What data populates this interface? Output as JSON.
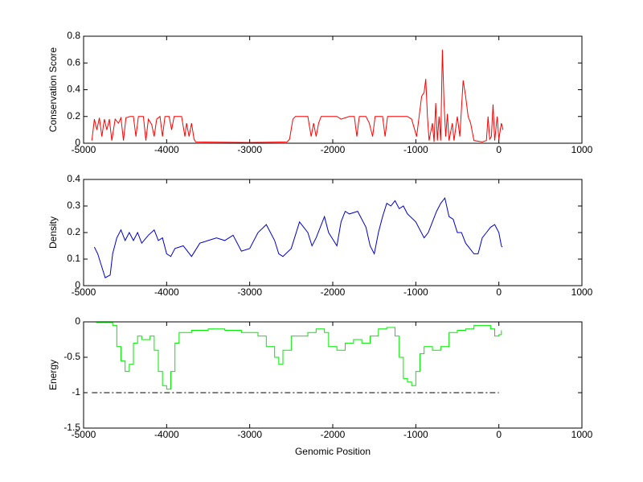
{
  "chart_data": [
    {
      "type": "line",
      "ylabel": "Conservation Score",
      "x": [
        -4900,
        -4870,
        -4840,
        -4810,
        -4780,
        -4750,
        -4720,
        -4690,
        -4660,
        -4620,
        -4580,
        -4550,
        -4520,
        -4490,
        -4440,
        -4400,
        -4370,
        -4340,
        -4280,
        -4250,
        -4220,
        -4180,
        -4150,
        -4120,
        -4080,
        -4050,
        -4020,
        -3970,
        -3940,
        -3910,
        -3820,
        -3780,
        -3760,
        -3730,
        -3700,
        -3670,
        -3650,
        -3000,
        -2550,
        -2520,
        -2480,
        -2450,
        -2300,
        -2260,
        -2230,
        -2200,
        -2170,
        -2140,
        -1950,
        -1900,
        -1850,
        -1800,
        -1740,
        -1710,
        -1680,
        -1600,
        -1560,
        -1520,
        -1490,
        -1400,
        -1370,
        -1340,
        -1100,
        -1050,
        -990,
        -960,
        -930,
        -900,
        -880,
        -860,
        -840,
        -800,
        -780,
        -760,
        -740,
        -720,
        -700,
        -680,
        -660,
        -640,
        -620,
        -600,
        -560,
        -540,
        -500,
        -470,
        -430,
        -400,
        -370,
        -340,
        -300,
        -200,
        -150,
        -130,
        -110,
        -90,
        -70,
        -50,
        -20,
        0,
        30,
        50
      ],
      "series": [
        {
          "color": "#ff0000",
          "values": [
            0.02,
            0.18,
            0.1,
            0.19,
            0.05,
            0.18,
            0.1,
            0.18,
            0.02,
            0.18,
            0.15,
            0.19,
            0.02,
            0.19,
            0.2,
            0.2,
            0.05,
            0.2,
            0.2,
            0.02,
            0.18,
            0.14,
            0.05,
            0.18,
            0.2,
            0.05,
            0.2,
            0.2,
            0.1,
            0.2,
            0.2,
            0.05,
            0.15,
            0.05,
            0.15,
            0.03,
            0.01,
            0.005,
            0.01,
            0.03,
            0.18,
            0.2,
            0.2,
            0.05,
            0.15,
            0.05,
            0.15,
            0.2,
            0.2,
            0.18,
            0.19,
            0.2,
            0.2,
            0.05,
            0.2,
            0.2,
            0.15,
            0.05,
            0.2,
            0.2,
            0.05,
            0.2,
            0.2,
            0.18,
            0.05,
            0.2,
            0.35,
            0.38,
            0.48,
            0.2,
            0.02,
            0.15,
            0.01,
            0.3,
            0.02,
            0.2,
            0.02,
            0.7,
            0.3,
            0.05,
            0.22,
            0.02,
            0.15,
            0.02,
            0.2,
            0.05,
            0.47,
            0.35,
            0.2,
            0.15,
            0.02,
            0.01,
            0.02,
            0.2,
            0.03,
            0.05,
            0.29,
            0.02,
            0.2,
            0.03,
            0.15,
            0.1
          ]
        }
      ],
      "xlim": [
        -5000,
        1000
      ],
      "xticks": [
        -5000,
        -4000,
        -3000,
        -2000,
        -1000,
        0,
        1000
      ],
      "ylim": [
        0,
        0.8
      ],
      "yticks": [
        0,
        0.2,
        0.4,
        0.6,
        0.8
      ]
    },
    {
      "type": "line",
      "ylabel": "Density",
      "x": [
        -4870,
        -4830,
        -4780,
        -4740,
        -4680,
        -4650,
        -4600,
        -4550,
        -4500,
        -4450,
        -4400,
        -4350,
        -4300,
        -4220,
        -4150,
        -4100,
        -4050,
        -4000,
        -3950,
        -3900,
        -3800,
        -3700,
        -3600,
        -3500,
        -3400,
        -3300,
        -3200,
        -3100,
        -3000,
        -2900,
        -2800,
        -2700,
        -2650,
        -2600,
        -2500,
        -2400,
        -2300,
        -2250,
        -2200,
        -2100,
        -2050,
        -1950,
        -1900,
        -1850,
        -1800,
        -1700,
        -1600,
        -1550,
        -1500,
        -1450,
        -1400,
        -1350,
        -1300,
        -1250,
        -1200,
        -1150,
        -1100,
        -1000,
        -900,
        -850,
        -800,
        -750,
        -700,
        -650,
        -600,
        -550,
        -500,
        -450,
        -400,
        -350,
        -300,
        -250,
        -200,
        -150,
        -100,
        -50,
        0,
        30,
        40
      ],
      "series": [
        {
          "color": "#0000cc",
          "values": [
            0.145,
            0.12,
            0.07,
            0.03,
            0.04,
            0.12,
            0.18,
            0.21,
            0.17,
            0.2,
            0.17,
            0.2,
            0.16,
            0.19,
            0.21,
            0.17,
            0.18,
            0.12,
            0.11,
            0.14,
            0.15,
            0.11,
            0.16,
            0.17,
            0.18,
            0.17,
            0.19,
            0.13,
            0.14,
            0.2,
            0.23,
            0.17,
            0.12,
            0.11,
            0.14,
            0.24,
            0.2,
            0.15,
            0.18,
            0.26,
            0.2,
            0.15,
            0.24,
            0.28,
            0.27,
            0.28,
            0.22,
            0.15,
            0.12,
            0.2,
            0.26,
            0.31,
            0.3,
            0.32,
            0.29,
            0.3,
            0.27,
            0.24,
            0.18,
            0.2,
            0.24,
            0.28,
            0.31,
            0.33,
            0.26,
            0.25,
            0.2,
            0.2,
            0.16,
            0.14,
            0.12,
            0.12,
            0.18,
            0.2,
            0.22,
            0.23,
            0.2,
            0.15,
            0.145
          ]
        }
      ],
      "xlim": [
        -5000,
        1000
      ],
      "xticks": [
        -5000,
        -4000,
        -3000,
        -2000,
        -1000,
        0,
        1000
      ],
      "ylim": [
        0,
        0.4
      ],
      "yticks": [
        0,
        0.1,
        0.2,
        0.3,
        0.4
      ]
    },
    {
      "type": "line",
      "ylabel": "Energy",
      "xlabel": "Genomic Position",
      "step": true,
      "x": [
        -4850,
        -4700,
        -4650,
        -4600,
        -4550,
        -4500,
        -4450,
        -4400,
        -4350,
        -4300,
        -4200,
        -4150,
        -4100,
        -4050,
        -4000,
        -3950,
        -3900,
        -3850,
        -3700,
        -3500,
        -3300,
        -3100,
        -2900,
        -2800,
        -2700,
        -2650,
        -2600,
        -2500,
        -2300,
        -2200,
        -2100,
        -2050,
        -1950,
        -1850,
        -1750,
        -1650,
        -1550,
        -1450,
        -1350,
        -1250,
        -1200,
        -1150,
        -1100,
        -1050,
        -1000,
        -950,
        -900,
        -800,
        -700,
        -600,
        -500,
        -400,
        -300,
        -200,
        -100,
        -50,
        0,
        30
      ],
      "series": [
        {
          "color": "#00ee00",
          "values": [
            -0.01,
            -0.01,
            -0.05,
            -0.35,
            -0.55,
            -0.7,
            -0.6,
            -0.3,
            -0.2,
            -0.25,
            -0.2,
            -0.4,
            -0.7,
            -0.9,
            -0.95,
            -0.7,
            -0.3,
            -0.15,
            -0.12,
            -0.1,
            -0.12,
            -0.15,
            -0.2,
            -0.35,
            -0.5,
            -0.6,
            -0.4,
            -0.2,
            -0.15,
            -0.1,
            -0.15,
            -0.35,
            -0.4,
            -0.3,
            -0.25,
            -0.3,
            -0.2,
            -0.1,
            -0.08,
            -0.2,
            -0.5,
            -0.8,
            -0.85,
            -0.9,
            -0.7,
            -0.45,
            -0.35,
            -0.4,
            -0.35,
            -0.15,
            -0.12,
            -0.1,
            -0.05,
            -0.05,
            -0.1,
            -0.2,
            -0.18,
            -0.12
          ]
        }
      ],
      "ref_line": {
        "value": -1,
        "x": [
          -4900,
          0
        ],
        "color": "#000000",
        "style": "dash-dot"
      },
      "xlim": [
        -5000,
        1000
      ],
      "xticks": [
        -5000,
        -4000,
        -3000,
        -2000,
        -1000,
        0,
        1000
      ],
      "ylim": [
        -1.5,
        0
      ],
      "yticks": [
        -1.5,
        -1,
        -0.5,
        0
      ]
    }
  ]
}
